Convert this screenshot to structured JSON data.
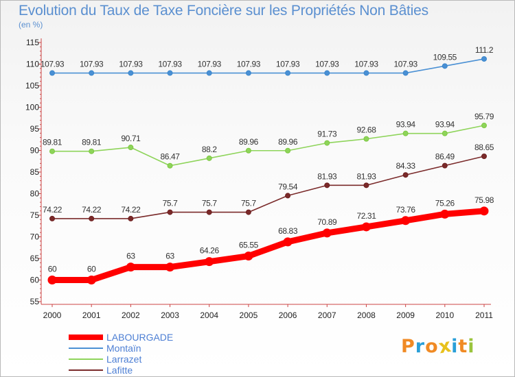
{
  "title": "Evolution du Taux de Taxe Foncière sur les Propriétés Non Bâties",
  "subtitle": "(en %)",
  "logo": {
    "text": "Proxiti",
    "colors": [
      "#f08a24",
      "#2a9fd8",
      "#f08a24",
      "#e8c11c",
      "#2a9fd8",
      "#f08a24",
      "#9ac43c"
    ]
  },
  "chart_data": {
    "type": "line",
    "title": "Evolution du Taux de Taxe Foncière sur les Propriétés Non Bâties",
    "ylabel": "(en %)",
    "xlabel": "",
    "ylim": [
      55,
      115
    ],
    "yticks": [
      55,
      60,
      65,
      70,
      75,
      80,
      85,
      90,
      95,
      100,
      105,
      110,
      115
    ],
    "x": [
      "2000",
      "2001",
      "2002",
      "2003",
      "2004",
      "2005",
      "2006",
      "2007",
      "2008",
      "2009",
      "2010",
      "2011"
    ],
    "grid": false,
    "legend_position": "bottom-left",
    "series": [
      {
        "name": "LABOURGADE",
        "color": "#ff0000",
        "thick": true,
        "values": [
          60,
          60,
          63,
          63,
          64.26,
          65.55,
          68.83,
          70.89,
          72.31,
          73.76,
          75.26,
          75.98
        ],
        "labels": [
          "60",
          "60",
          "63",
          "63",
          "64.26",
          "65.55",
          "68.83",
          "70.89",
          "72.31",
          "73.76",
          "75.26",
          "75.98"
        ]
      },
      {
        "name": "Montaïn",
        "color": "#4a90d4",
        "point": "#3a86cc",
        "thick": false,
        "values": [
          107.93,
          107.93,
          107.93,
          107.93,
          107.93,
          107.93,
          107.93,
          107.93,
          107.93,
          107.93,
          109.55,
          111.2
        ],
        "labels": [
          "107.93",
          "107.93",
          "107.93",
          "107.93",
          "107.93",
          "107.93",
          "107.93",
          "107.93",
          "107.93",
          "107.93",
          "109.55",
          "111.2"
        ]
      },
      {
        "name": "Larrazet",
        "color": "#8ed45a",
        "point": "#7cc840",
        "thick": false,
        "values": [
          89.81,
          89.81,
          90.71,
          86.47,
          88.2,
          89.96,
          89.96,
          91.73,
          92.68,
          93.94,
          93.94,
          95.79
        ],
        "labels": [
          "89.81",
          "89.81",
          "90.71",
          "86.47",
          "88.2",
          "89.96",
          "89.96",
          "91.73",
          "92.68",
          "93.94",
          "93.94",
          "95.79"
        ]
      },
      {
        "name": "Lafitte",
        "color": "#7a2a2a",
        "point": "#6e2020",
        "thick": false,
        "values": [
          74.22,
          74.22,
          74.22,
          75.7,
          75.7,
          75.7,
          79.54,
          81.93,
          81.93,
          84.33,
          86.49,
          88.65
        ],
        "labels": [
          "74.22",
          "74.22",
          "74.22",
          "75.7",
          "75.7",
          "75.7",
          "79.54",
          "81.93",
          "81.93",
          "84.33",
          "86.49",
          "88.65"
        ]
      }
    ]
  }
}
